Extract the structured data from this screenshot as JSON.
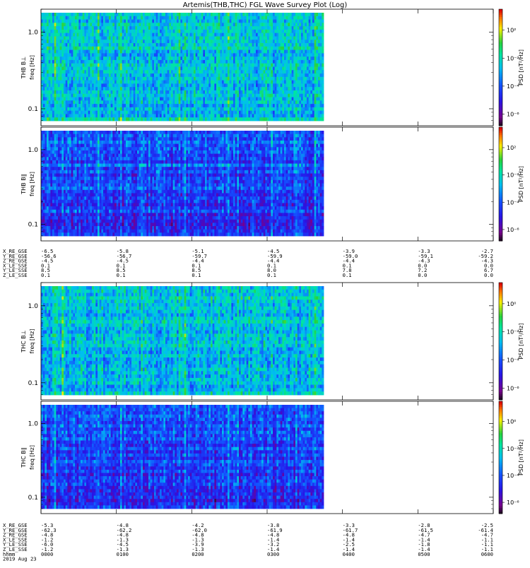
{
  "chart_data": {
    "type": "heatmap",
    "title": "Artemis(THB,THC) FGL Wave Survey Plot (Log)",
    "colorbar": {
      "label": "PSD [nT²/Hz]",
      "ticks": [
        "10²",
        "10⁻²",
        "10⁻⁴",
        "10⁻⁶"
      ],
      "scale": "log",
      "colormap": "rainbow (black-purple-blue-cyan-green-yellow-red)"
    },
    "time_axis": {
      "label": "hhmm",
      "date": "2019 Aug 23",
      "ticks": [
        "0000",
        "0100",
        "0200",
        "0300",
        "0400",
        "0500",
        "0600"
      ],
      "data_coverage": [
        "0000",
        "0345"
      ]
    },
    "panels": [
      {
        "id": "thb-bperp",
        "probe": "THB",
        "component": "B⊥",
        "ylabel": "THB B⊥",
        "yunit": "freq [Hz]",
        "yscale": "log",
        "ylim": [
          0.06,
          2.0
        ],
        "yticks": [
          "1.0",
          "0.1"
        ],
        "level": "high",
        "cbar_ticks": [
          "10²",
          "10⁻²",
          "10⁻⁴",
          "10⁻⁶"
        ]
      },
      {
        "id": "thb-bpar",
        "probe": "THB",
        "component": "B∥",
        "ylabel": "THB B∥",
        "yunit": "freq [Hz]",
        "yscale": "log",
        "ylim": [
          0.06,
          2.0
        ],
        "yticks": [
          "1.0",
          "0.1"
        ],
        "level": "low",
        "cbar_ticks": [
          "10²",
          "10⁻²",
          "10⁻⁴",
          "10⁻⁶"
        ]
      },
      {
        "id": "thc-bperp",
        "probe": "THC",
        "component": "B⊥",
        "ylabel": "THC B⊥",
        "yunit": "freq [Hz]",
        "yscale": "log",
        "ylim": [
          0.06,
          2.0
        ],
        "yticks": [
          "1.0",
          "0.1"
        ],
        "level": "high",
        "cbar_ticks": [
          "10⁰",
          "10⁻²",
          "10⁻⁴",
          "10⁻⁶"
        ]
      },
      {
        "id": "thc-bpar",
        "probe": "THC",
        "component": "B∥",
        "ylabel": "THC B∥",
        "yunit": "freq [Hz]",
        "yscale": "log",
        "ylim": [
          0.06,
          2.0
        ],
        "yticks": [
          "1.0",
          "0.1"
        ],
        "level": "low",
        "cbar_ticks": [
          "10⁰",
          "10⁻²",
          "10⁻⁴",
          "10⁻⁶"
        ]
      }
    ],
    "ephemeris_thb": {
      "rows": [
        {
          "label": "X_RE_GSE",
          "values": [
            "-6.5",
            "-5.8",
            "-5.1",
            "-4.5",
            "-3.9",
            "-3.3",
            "-2.7"
          ]
        },
        {
          "label": "Y_RE_GSE",
          "values": [
            "-56.6",
            "-56.7",
            "-59.7",
            "-59.9",
            "-59.0",
            "-59.1",
            "-59.2"
          ]
        },
        {
          "label": "Z_RE_GSE",
          "values": [
            "-4.5",
            "-4.5",
            "-4.4",
            "-4.4",
            "-4.4",
            "-4.3",
            "-4.3"
          ]
        },
        {
          "label": "X_LE_SSE",
          "values": [
            "0.1",
            "0.1",
            "0.1",
            "0.1",
            "0.1",
            "0.0",
            "0.0"
          ]
        },
        {
          "label": "Y_LE_SSE",
          "values": [
            "8.5",
            "8.5",
            "8.5",
            "8.0",
            "7.8",
            "7.2",
            "6.7"
          ]
        },
        {
          "label": "Z_LE_SSE",
          "values": [
            "0.1",
            "0.1",
            "0.1",
            "0.1",
            "0.1",
            "0.0",
            "0.0"
          ]
        }
      ]
    },
    "ephemeris_thc": {
      "rows": [
        {
          "label": "X_RE_GSE",
          "values": [
            "-5.3",
            "-4.8",
            "-4.2",
            "-3.8",
            "-3.3",
            "-2.8",
            "-2.5"
          ]
        },
        {
          "label": "Y_RE_GSE",
          "values": [
            "-62.3",
            "-62.2",
            "-62.0",
            "-61.9",
            "-61.7",
            "-61.5",
            "-61.4"
          ]
        },
        {
          "label": "Z_RE_GSE",
          "values": [
            "-4.8",
            "-4.8",
            "-4.8",
            "-4.8",
            "-4.8",
            "-4.7",
            "-4.7"
          ]
        },
        {
          "label": "X_LE_SSE",
          "values": [
            "-1.2",
            "-1.3",
            "-1.3",
            "-1.4",
            "-1.4",
            "-1.4",
            "-1.1"
          ]
        },
        {
          "label": "Y_LE_SSE",
          "values": [
            "-6.0",
            "-4.5",
            "-3.9",
            "-3.2",
            "-2.5",
            "-1.8",
            "-1.1"
          ]
        },
        {
          "label": "Z_LE_SSE",
          "values": [
            "-1.2",
            "-1.3",
            "-1.3",
            "-1.4",
            "-1.4",
            "-1.4",
            "-1.1"
          ]
        }
      ]
    }
  }
}
